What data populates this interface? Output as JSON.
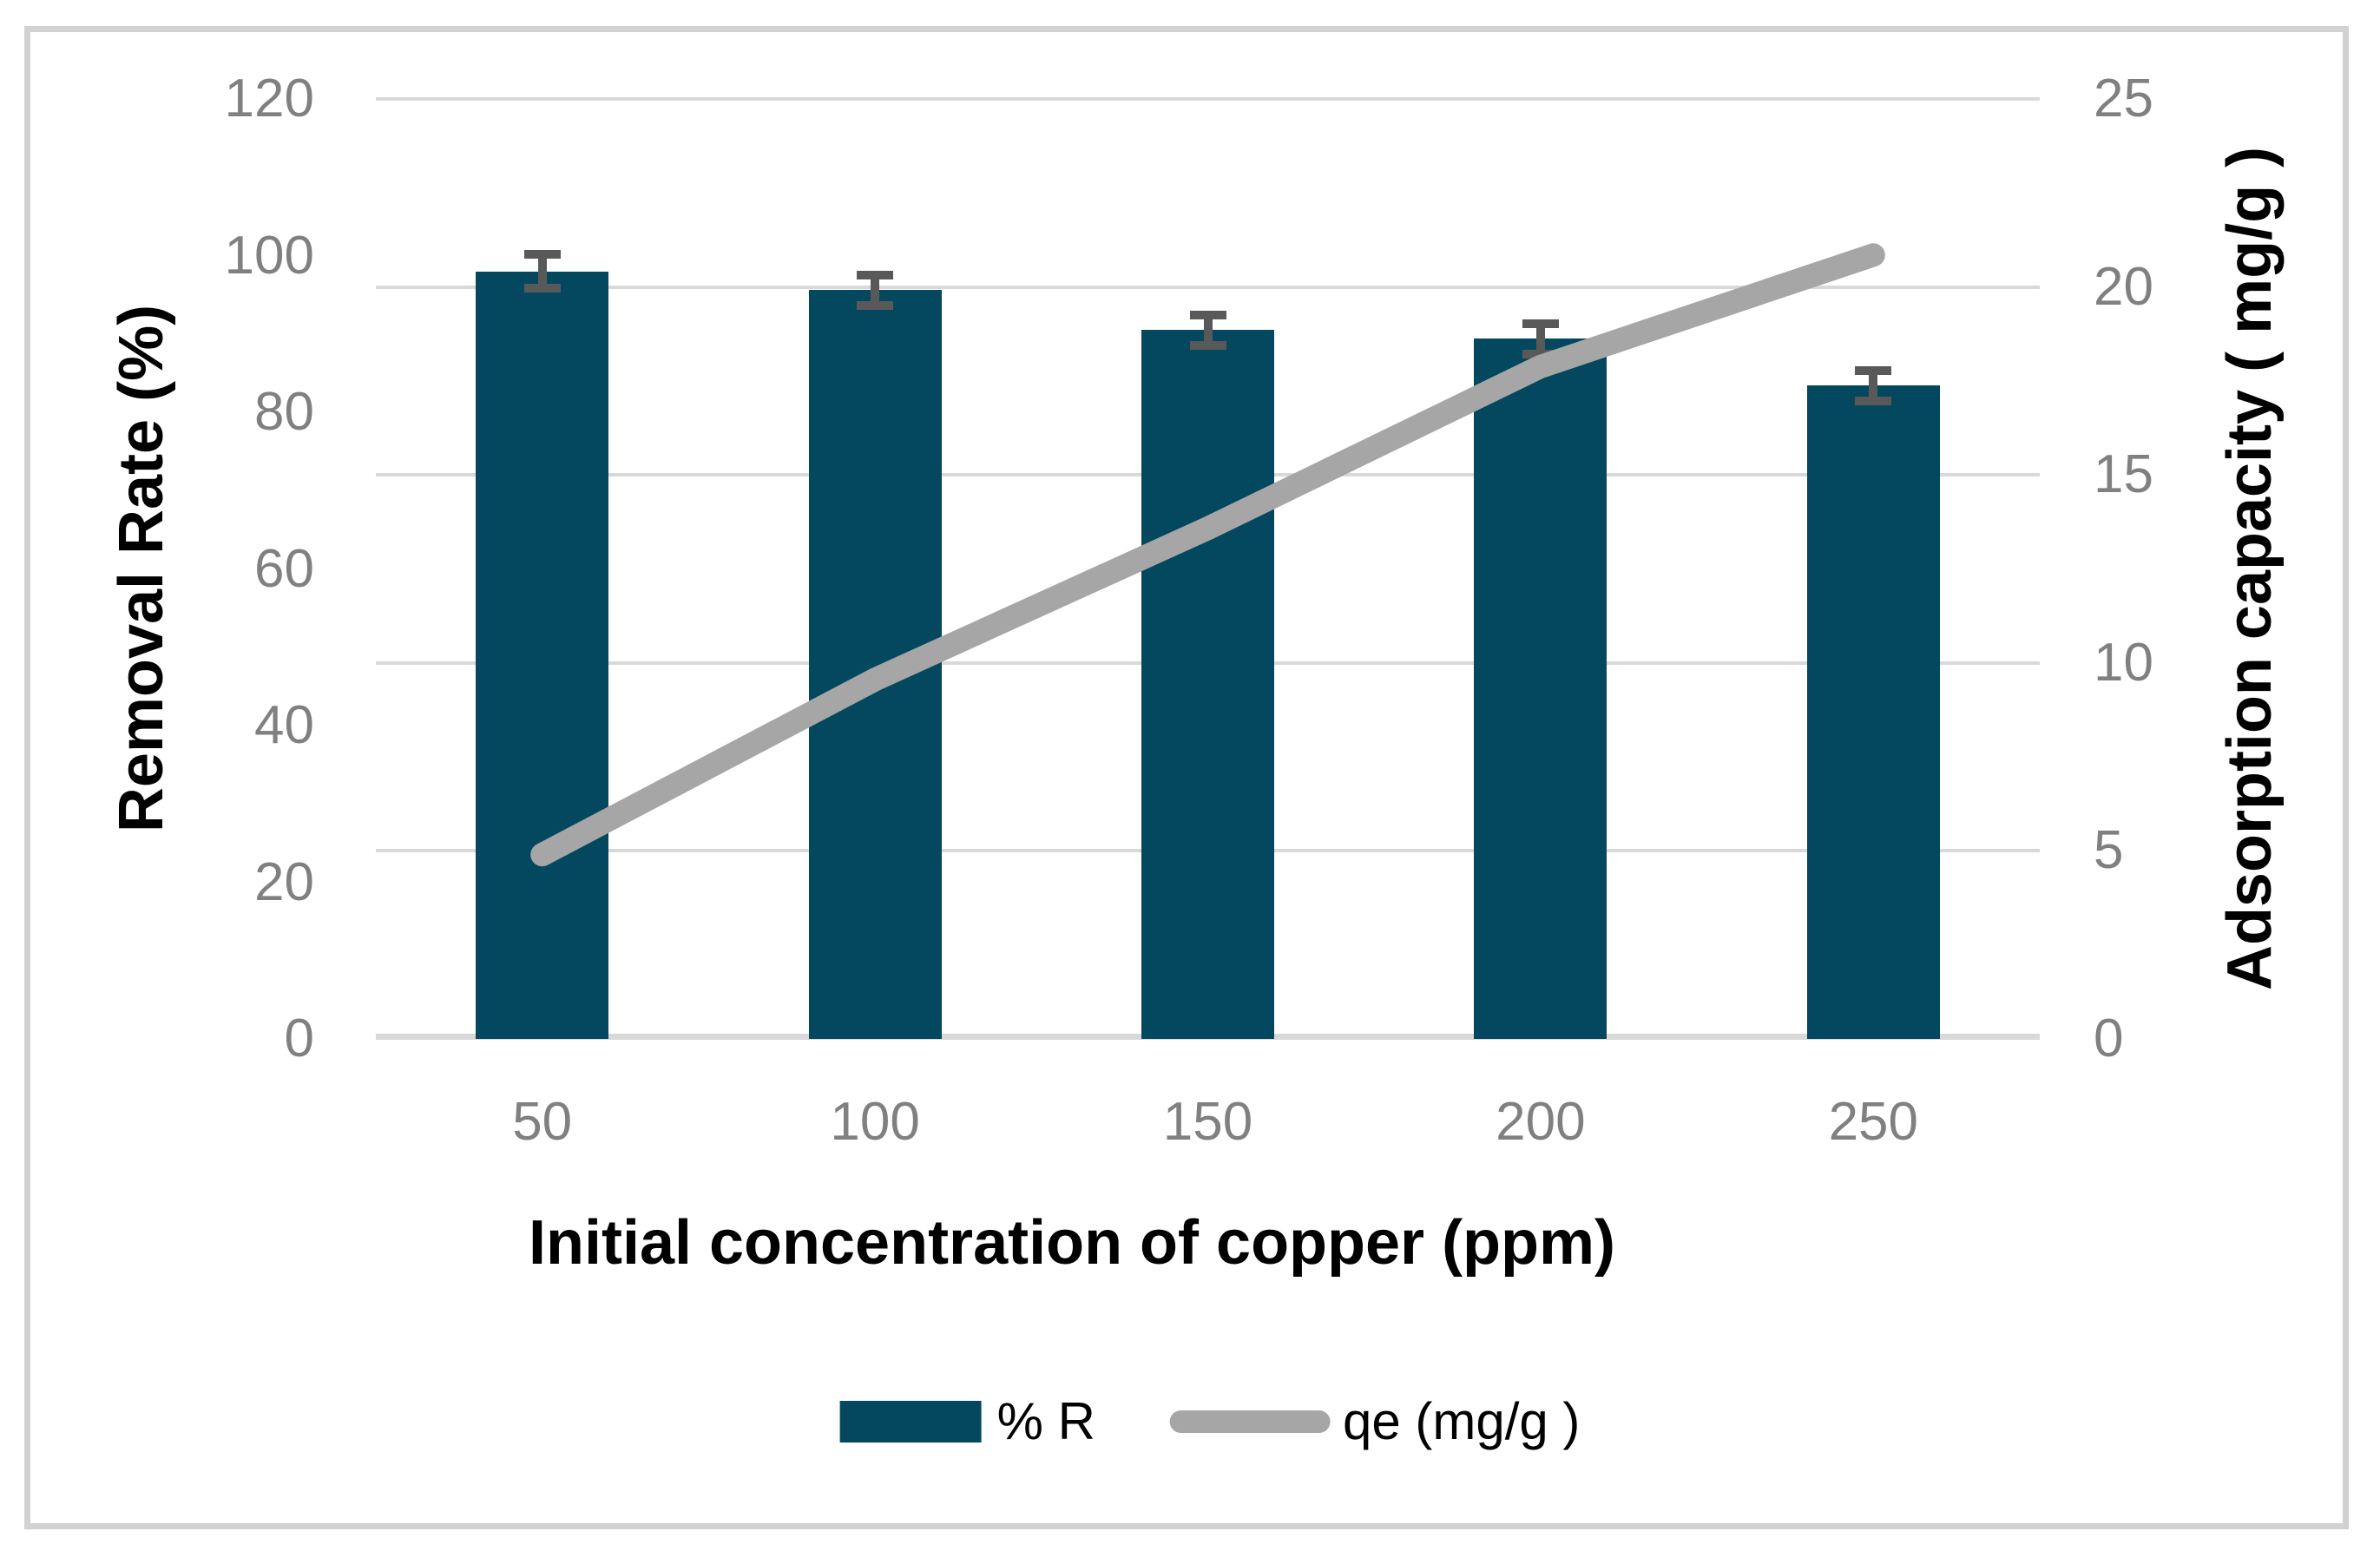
{
  "chart_data": {
    "type": "combo-bar-line",
    "categories": [
      "50",
      "100",
      "150",
      "200",
      "250"
    ],
    "series": [
      {
        "name": "% R",
        "type": "bar",
        "axis": "left",
        "color": "#04485f",
        "values": [
          98,
          95.6,
          90.5,
          89.4,
          83.4
        ],
        "error_bars": [
          2.75,
          2.5,
          2.5,
          2.5,
          2.5
        ],
        "error_color": "#595959"
      },
      {
        "name": "qe (mg/g )",
        "type": "line",
        "axis": "right",
        "color": "#a6a6a6",
        "values": [
          4.9,
          9.56,
          13.58,
          17.88,
          20.85
        ]
      }
    ],
    "left_axis": {
      "title": "Removal Rate (%)",
      "min": 0,
      "max": 120,
      "step": 20,
      "tick_labels": [
        "120",
        "100",
        "80",
        "60",
        "40",
        "20",
        "0"
      ]
    },
    "right_axis": {
      "title": "Adsorption capacity ( mg/g )",
      "min": 0,
      "max": 25,
      "step": 5,
      "tick_labels": [
        "25",
        "20",
        "15",
        "10",
        "5",
        "0"
      ]
    },
    "x_axis": {
      "title": "Initial concentration of copper (ppm)",
      "tick_labels": [
        "50",
        "100",
        "150",
        "200",
        "250"
      ]
    },
    "gridlines": {
      "on": true,
      "follow_axis": "right",
      "color": "#d9d9d9"
    },
    "legend": {
      "position": "bottom",
      "entries": [
        {
          "label": "% R",
          "swatch": "bar",
          "color": "#04485f"
        },
        {
          "label": "qe (mg/g )",
          "swatch": "line",
          "color": "#a6a6a6"
        }
      ]
    }
  },
  "layout_text": {
    "left_title": "Removal Rate (%)",
    "right_title": "Adsorption capacity ( mg/g )",
    "x_title": "Initial concentration of copper (ppm)",
    "legend_bar_label": "% R",
    "legend_line_label": "qe (mg/g )"
  }
}
